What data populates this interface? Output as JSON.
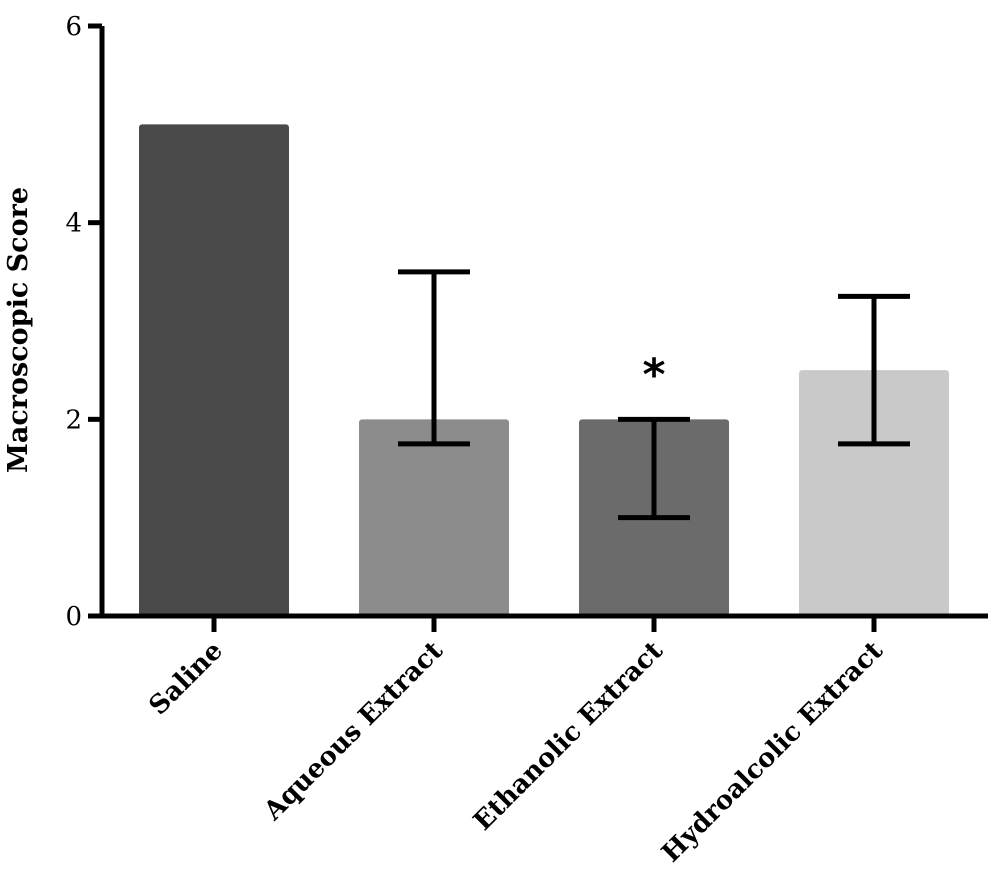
{
  "chart_data": {
    "type": "bar",
    "title": "",
    "xlabel": "",
    "ylabel": "Macroscopic Score",
    "ylim": [
      0,
      6
    ],
    "yticks": [
      "0",
      "2",
      "4",
      "6"
    ],
    "categories": [
      "Saline",
      "Aqueous Extract",
      "Ethanolic Extract",
      "Hydroalcolic Extract"
    ],
    "values": [
      5,
      2,
      2,
      2.5
    ],
    "error_low": [
      null,
      1.75,
      1,
      1.75
    ],
    "error_high": [
      null,
      3.5,
      2,
      3.25
    ],
    "annotations": [
      "",
      "",
      "*",
      ""
    ],
    "colors": [
      "#4a4a4a",
      "#8c8c8c",
      "#6b6b6b",
      "#c9c9c9"
    ],
    "grid": false,
    "legend": "none"
  }
}
